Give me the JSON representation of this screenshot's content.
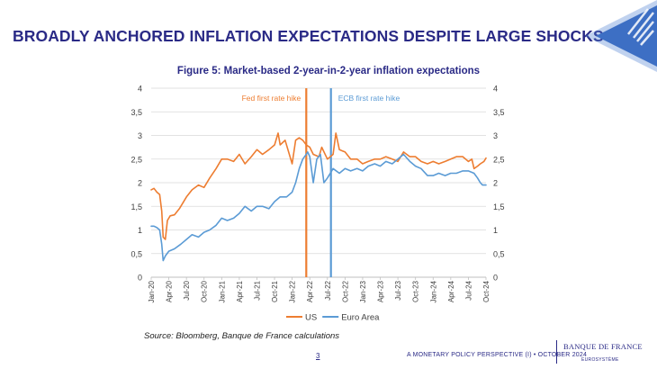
{
  "slide": {
    "title": "BROADLY ANCHORED INFLATION EXPECTATIONS DESPITE LARGE SHOCKS",
    "page_number": "3",
    "footer": "A MONETARY POLICY PERSPECTIVE (I) • OCTOBER 2024",
    "source": "Source: Bloomberg, Banque de France calculations",
    "logo_name": "BANQUE DE FRANCE",
    "logo_sub": "EUROSYSTÈME"
  },
  "chart_data": {
    "type": "line",
    "title": "Figure 5: Market-based 2-year-in-2-year inflation expectations",
    "ylim": [
      0,
      4
    ],
    "yticks": [
      "0",
      "0,5",
      "1",
      "1,5",
      "2",
      "2,5",
      "3",
      "3,5",
      "4"
    ],
    "ytick_values": [
      0,
      0.5,
      1,
      1.5,
      2,
      2.5,
      3,
      3.5,
      4
    ],
    "xlim": [
      2020.0,
      2024.75
    ],
    "xticks": [
      "Jan-20",
      "Apr-20",
      "Jul-20",
      "Oct-20",
      "Jan-21",
      "Apr-21",
      "Jul-21",
      "Oct-21",
      "Jan-22",
      "Apr-22",
      "Jul-22",
      "Oct-22",
      "Jan-23",
      "Apr-23",
      "Jul-23",
      "Oct-23",
      "Jan-24",
      "Apr-24",
      "Jul-24",
      "Oct-24"
    ],
    "xtick_values": [
      2020.0,
      2020.25,
      2020.5,
      2020.75,
      2021.0,
      2021.25,
      2021.5,
      2021.75,
      2022.0,
      2022.25,
      2022.5,
      2022.75,
      2023.0,
      2023.25,
      2023.5,
      2023.75,
      2024.0,
      2024.25,
      2024.5,
      2024.75
    ],
    "grid": true,
    "legend_position": "bottom",
    "colors": {
      "US": "#ED7D31",
      "Euro Area": "#5B9BD5"
    },
    "series": [
      {
        "name": "US",
        "color": "#ED7D31",
        "x": [
          2020.0,
          2020.04,
          2020.08,
          2020.12,
          2020.15,
          2020.17,
          2020.2,
          2020.23,
          2020.27,
          2020.33,
          2020.4,
          2020.5,
          2020.58,
          2020.67,
          2020.75,
          2020.83,
          2020.92,
          2021.0,
          2021.08,
          2021.17,
          2021.25,
          2021.33,
          2021.42,
          2021.5,
          2021.58,
          2021.67,
          2021.75,
          2021.8,
          2021.83,
          2021.9,
          2022.0,
          2022.05,
          2022.1,
          2022.15,
          2022.2,
          2022.25,
          2022.3,
          2022.38,
          2022.42,
          2022.5,
          2022.58,
          2022.62,
          2022.67,
          2022.75,
          2022.83,
          2022.92,
          2023.0,
          2023.08,
          2023.17,
          2023.25,
          2023.33,
          2023.42,
          2023.5,
          2023.58,
          2023.67,
          2023.75,
          2023.83,
          2023.92,
          2024.0,
          2024.08,
          2024.17,
          2024.25,
          2024.33,
          2024.42,
          2024.5,
          2024.55,
          2024.58,
          2024.63,
          2024.67,
          2024.72,
          2024.75
        ],
        "values": [
          1.85,
          1.88,
          1.8,
          1.75,
          1.4,
          0.85,
          0.8,
          1.2,
          1.3,
          1.32,
          1.45,
          1.7,
          1.85,
          1.95,
          1.9,
          2.1,
          2.3,
          2.5,
          2.5,
          2.45,
          2.6,
          2.4,
          2.55,
          2.7,
          2.6,
          2.7,
          2.8,
          3.05,
          2.8,
          2.9,
          2.4,
          2.9,
          2.95,
          2.9,
          2.8,
          2.75,
          2.6,
          2.55,
          2.75,
          2.5,
          2.6,
          3.05,
          2.7,
          2.65,
          2.5,
          2.5,
          2.4,
          2.45,
          2.5,
          2.5,
          2.55,
          2.5,
          2.45,
          2.65,
          2.55,
          2.55,
          2.45,
          2.4,
          2.45,
          2.4,
          2.45,
          2.5,
          2.55,
          2.55,
          2.45,
          2.5,
          2.3,
          2.35,
          2.4,
          2.45,
          2.52
        ]
      },
      {
        "name": "Euro Area",
        "color": "#5B9BD5",
        "x": [
          2020.0,
          2020.04,
          2020.08,
          2020.12,
          2020.15,
          2020.17,
          2020.2,
          2020.25,
          2020.33,
          2020.42,
          2020.5,
          2020.58,
          2020.67,
          2020.75,
          2020.83,
          2020.92,
          2021.0,
          2021.08,
          2021.17,
          2021.25,
          2021.33,
          2021.42,
          2021.5,
          2021.58,
          2021.67,
          2021.75,
          2021.83,
          2021.92,
          2022.0,
          2022.05,
          2022.1,
          2022.15,
          2022.2,
          2022.22,
          2022.25,
          2022.3,
          2022.35,
          2022.4,
          2022.45,
          2022.5,
          2022.58,
          2022.67,
          2022.75,
          2022.83,
          2022.92,
          2023.0,
          2023.08,
          2023.17,
          2023.25,
          2023.33,
          2023.42,
          2023.5,
          2023.58,
          2023.67,
          2023.75,
          2023.83,
          2023.92,
          2024.0,
          2024.08,
          2024.17,
          2024.25,
          2024.33,
          2024.42,
          2024.5,
          2024.58,
          2024.63,
          2024.67,
          2024.7,
          2024.75
        ],
        "values": [
          1.08,
          1.08,
          1.05,
          1.0,
          0.7,
          0.35,
          0.45,
          0.55,
          0.6,
          0.7,
          0.8,
          0.9,
          0.85,
          0.95,
          1.0,
          1.1,
          1.25,
          1.2,
          1.25,
          1.35,
          1.5,
          1.4,
          1.5,
          1.5,
          1.45,
          1.6,
          1.7,
          1.7,
          1.8,
          2.0,
          2.3,
          2.5,
          2.6,
          2.65,
          2.55,
          2.0,
          2.5,
          2.6,
          2.0,
          2.1,
          2.3,
          2.2,
          2.3,
          2.25,
          2.3,
          2.25,
          2.35,
          2.4,
          2.35,
          2.45,
          2.4,
          2.5,
          2.6,
          2.45,
          2.35,
          2.3,
          2.15,
          2.15,
          2.2,
          2.15,
          2.2,
          2.2,
          2.25,
          2.25,
          2.2,
          2.1,
          2.0,
          1.95,
          1.95
        ]
      }
    ],
    "annotations": [
      {
        "label": "Fed first rate hike",
        "x": 2022.2,
        "color": "#ED7D31"
      },
      {
        "label": "ECB first rate hike",
        "x": 2022.55,
        "color": "#5B9BD5"
      }
    ]
  }
}
